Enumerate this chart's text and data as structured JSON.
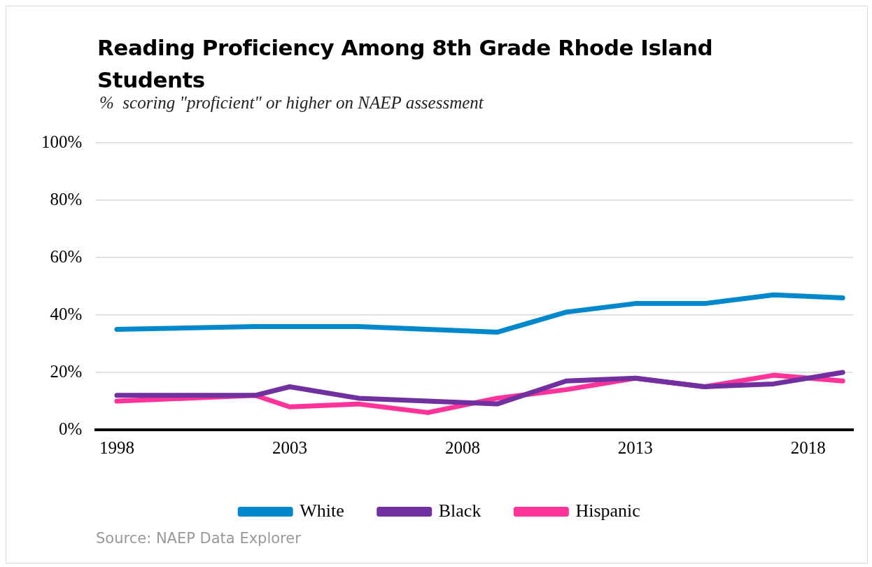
{
  "chart_data": {
    "type": "line",
    "title": "Reading Proficiency Among 8th Grade Rhode Island Students",
    "subtitle": "%  scoring \"proficient\" or higher on NAEP assessment",
    "x": [
      1998,
      2002,
      2003,
      2005,
      2007,
      2009,
      2011,
      2013,
      2015,
      2017,
      2019
    ],
    "series": [
      {
        "name": "White",
        "color": "#0088cc",
        "values": [
          35,
          36,
          36,
          36,
          35,
          34,
          41,
          44,
          44,
          47,
          46
        ]
      },
      {
        "name": "Black",
        "color": "#7030a0",
        "values": [
          12,
          12,
          15,
          11,
          10,
          9,
          17,
          18,
          15,
          16,
          20
        ]
      },
      {
        "name": "Hispanic",
        "color": "#ff3399",
        "values": [
          10,
          12,
          8,
          9,
          6,
          11,
          14,
          18,
          15,
          19,
          17
        ]
      }
    ],
    "xlim": [
      1997.4,
      2019.3
    ],
    "xticks": [
      1998,
      2003,
      2008,
      2013,
      2018
    ],
    "ylim": [
      0,
      100
    ],
    "yticks": [
      {
        "value": 0,
        "label": "0%"
      },
      {
        "value": 20,
        "label": "20%"
      },
      {
        "value": 40,
        "label": "40%"
      },
      {
        "value": 60,
        "label": "60%"
      },
      {
        "value": 80,
        "label": "80%"
      },
      {
        "value": 100,
        "label": "100%"
      }
    ],
    "grid": "y",
    "legend": "bottom",
    "marker": "none",
    "line_style": "solid",
    "annotations": [
      "Source: NAEP Data Explorer"
    ]
  }
}
